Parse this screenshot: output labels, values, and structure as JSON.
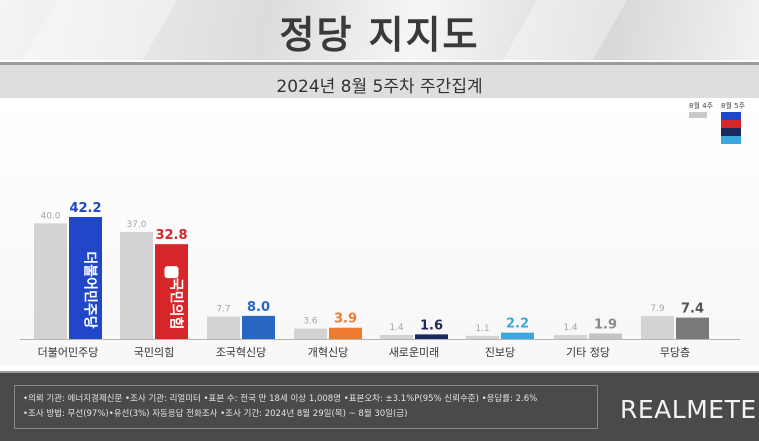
{
  "title": "정당 지지도",
  "subtitle": "2024년 8월 5주차 주간집계",
  "legend": {
    "prev_label": "8월 4주",
    "curr_label": "8월 5주"
  },
  "colors": {
    "prev_bar": "#d3d3d3",
    "minjoo": "#1f47c8",
    "ppp": "#d7262a",
    "rebuild": "#2a67c4",
    "reform": "#ee7b30",
    "future": "#1b2a5a",
    "progressive": "#3aa7de",
    "others": "#c4c4c4",
    "none": "#7a7a7a"
  },
  "chart_data": {
    "type": "bar",
    "categories": [
      "더불어민주당",
      "국민의힘",
      "조국혁신당",
      "개혁신당",
      "새로운미래",
      "진보당",
      "기타 정당",
      "무당층"
    ],
    "series": [
      {
        "name": "8월 4주",
        "values": [
          40.0,
          37.0,
          7.7,
          3.6,
          1.4,
          1.1,
          1.4,
          7.9
        ]
      },
      {
        "name": "8월 5주",
        "values": [
          42.2,
          32.8,
          8.0,
          3.9,
          1.6,
          2.2,
          1.9,
          7.4
        ]
      }
    ],
    "prev_labels": [
      "40.0",
      "37.0",
      "7.7",
      "3.6",
      "1.4",
      "1.1",
      "1.4",
      "7.9"
    ],
    "curr_labels": [
      "42.2",
      "32.8",
      "8.0",
      "3.9",
      "1.6",
      "2.2",
      "1.9",
      "7.4"
    ],
    "ylim": [
      0,
      50
    ],
    "grid": false,
    "legend_position": "top-right"
  },
  "bar_logos": {
    "minjoo": "더불어민주당",
    "ppp": "국민의힘"
  },
  "footer": {
    "line1": "•의뢰 기관: 에너지경제신문 •조사 기관: 리얼미터 •표본 수: 전국 만 18세 이상 1,008명 •표본오차: ±3.1%P(95% 신뢰수준) •응답률: 2.6%",
    "line2": "•조사 방법: 무선(97%)•유선(3%) 자동응답 전화조사 •조사 기간: 2024년 8월 29일(목) ~ 8월 30일(금)",
    "brand": "REALMETER"
  }
}
